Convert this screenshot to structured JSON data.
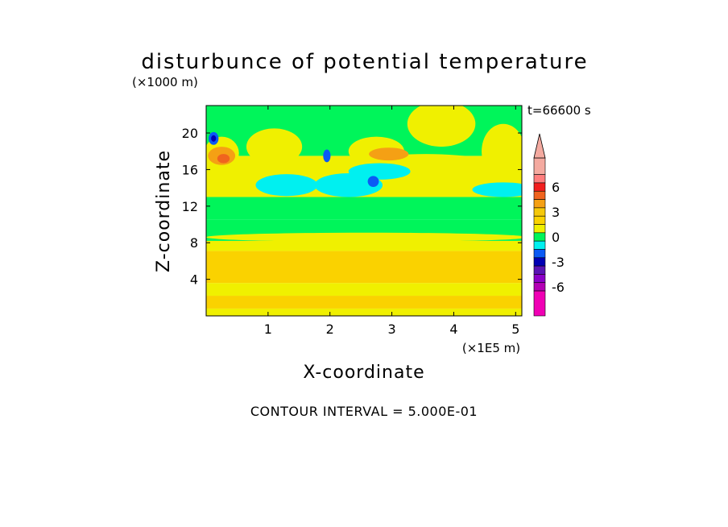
{
  "chart_data": {
    "type": "heatmap",
    "title": "disturbunce of potential temperature",
    "time_label": "t=66600 s",
    "xlabel": "X-coordinate",
    "ylabel": "Z-coordinate",
    "x_unit": "(×1E5 m)",
    "y_unit": "(×1000 m)",
    "xlim": [
      0,
      5.1
    ],
    "ylim": [
      0,
      23
    ],
    "x_ticks": [
      "1",
      "2",
      "3",
      "4",
      "5"
    ],
    "y_ticks": [
      "4",
      "8",
      "12",
      "16",
      "20"
    ],
    "contour_interval_text": "CONTOUR INTERVAL = 5.000E-01",
    "colorbar": {
      "labels": [
        "6",
        "3",
        "0",
        "-3",
        "-6"
      ],
      "label_values": [
        6,
        3,
        0,
        -3,
        -6
      ],
      "range": [
        -9.5,
        9.5
      ],
      "bins": [
        {
          "min": 7.5,
          "max": 9.5,
          "color": "#f4aaa0"
        },
        {
          "min": 6.5,
          "max": 7.5,
          "color": "#ff7d7d"
        },
        {
          "min": 5.5,
          "max": 6.5,
          "color": "#f21e1e"
        },
        {
          "min": 4.5,
          "max": 5.5,
          "color": "#f0641e"
        },
        {
          "min": 3.5,
          "max": 4.5,
          "color": "#f5a014"
        },
        {
          "min": 2.5,
          "max": 3.5,
          "color": "#f5c80a"
        },
        {
          "min": 1.5,
          "max": 2.5,
          "color": "#fad200"
        },
        {
          "min": 0.5,
          "max": 1.5,
          "color": "#f0f000"
        },
        {
          "min": -0.5,
          "max": 0.5,
          "color": "#00f55a"
        },
        {
          "min": -1.5,
          "max": -0.5,
          "color": "#00f0f0"
        },
        {
          "min": -2.5,
          "max": -1.5,
          "color": "#0a5af5"
        },
        {
          "min": -3.5,
          "max": -2.5,
          "color": "#0000b4"
        },
        {
          "min": -4.5,
          "max": -3.5,
          "color": "#5a14b4"
        },
        {
          "min": -5.5,
          "max": -4.5,
          "color": "#8c00c8"
        },
        {
          "min": -6.5,
          "max": -5.5,
          "color": "#b400b4"
        },
        {
          "min": -9.5,
          "max": -6.5,
          "color": "#f000b4"
        }
      ]
    },
    "field": {
      "bands": [
        {
          "z": [
            0,
            0.8
          ],
          "color": "#f0f000"
        },
        {
          "z": [
            0.8,
            2.2
          ],
          "color": "#fad200"
        },
        {
          "z": [
            2.2,
            3.6
          ],
          "color": "#f0f000"
        },
        {
          "z": [
            3.6,
            7.1
          ],
          "color": "#fad200"
        },
        {
          "z": [
            7.1,
            8.2
          ],
          "color": "#f0f000"
        },
        {
          "z": [
            8.2,
            10.5
          ],
          "color": "#00f55a"
        },
        {
          "z": [
            10.5,
            13.0
          ],
          "color": "#00f55a"
        },
        {
          "z": [
            13.0,
            17.5
          ],
          "color": "#f0f000"
        },
        {
          "z": [
            17.5,
            23
          ],
          "color": "#00f55a"
        }
      ],
      "patches": [
        {
          "x": 0.25,
          "z": 17.8,
          "rx": 0.28,
          "rz": 1.8,
          "color": "#f0f000"
        },
        {
          "x": 1.1,
          "z": 18.5,
          "rx": 0.45,
          "rz": 2.0,
          "color": "#f0f000"
        },
        {
          "x": 2.75,
          "z": 18.0,
          "rx": 0.45,
          "rz": 1.6,
          "color": "#f0f000"
        },
        {
          "x": 3.55,
          "z": 16.0,
          "rx": 1.3,
          "rz": 1.7,
          "color": "#f0f000"
        },
        {
          "x": 4.8,
          "z": 18.0,
          "rx": 0.35,
          "rz": 3.0,
          "color": "#f0f000"
        },
        {
          "x": 3.8,
          "z": 21.0,
          "rx": 0.55,
          "rz": 2.5,
          "color": "#f0f000"
        },
        {
          "x": 1.3,
          "z": 14.3,
          "rx": 0.5,
          "rz": 1.2,
          "color": "#00f0f0"
        },
        {
          "x": 2.3,
          "z": 14.3,
          "rx": 0.55,
          "rz": 1.3,
          "color": "#00f0f0"
        },
        {
          "x": 4.8,
          "z": 13.8,
          "rx": 0.5,
          "rz": 0.8,
          "color": "#00f0f0"
        },
        {
          "x": 2.8,
          "z": 15.8,
          "rx": 0.5,
          "rz": 0.9,
          "color": "#00f0f0"
        },
        {
          "x": 2.6,
          "z": 8.6,
          "rx": 2.6,
          "rz": 0.5,
          "color": "#f0f000"
        },
        {
          "x": 0.25,
          "z": 17.5,
          "rx": 0.22,
          "rz": 1.0,
          "color": "#f5a014"
        },
        {
          "x": 0.28,
          "z": 17.2,
          "rx": 0.1,
          "rz": 0.5,
          "color": "#f0641e"
        },
        {
          "x": 2.95,
          "z": 17.7,
          "rx": 0.32,
          "rz": 0.7,
          "color": "#f5a014"
        },
        {
          "x": 0.12,
          "z": 19.4,
          "rx": 0.08,
          "rz": 0.7,
          "color": "#0a5af5"
        },
        {
          "x": 1.95,
          "z": 17.5,
          "rx": 0.06,
          "rz": 0.7,
          "color": "#0a5af5"
        },
        {
          "x": 2.7,
          "z": 14.7,
          "rx": 0.09,
          "rz": 0.6,
          "color": "#0a5af5"
        },
        {
          "x": 0.12,
          "z": 19.4,
          "rx": 0.04,
          "rz": 0.35,
          "color": "#0000b4"
        }
      ]
    }
  }
}
